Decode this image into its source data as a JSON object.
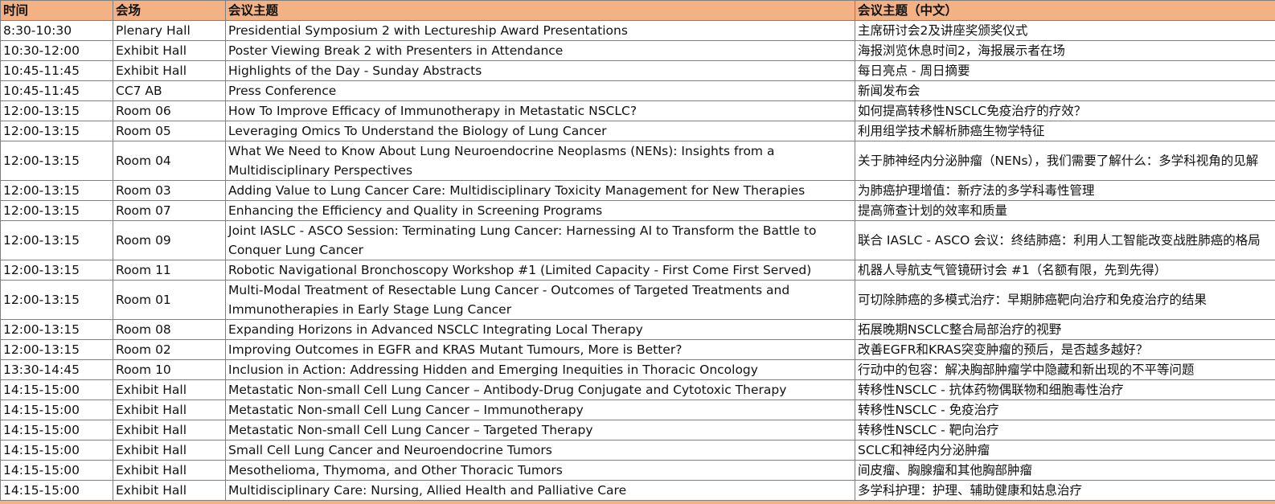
{
  "headers": {
    "time": "时间",
    "venue": "会场",
    "topic": "会议主题",
    "topic_cn": "会议主题（中文）"
  },
  "rows": [
    {
      "time": " 8:30-10:30",
      "venue": "Plenary Hall",
      "topic": "Presidential Symposium 2 with Lectureship Award Presentations",
      "topic_cn": "主席研讨会2及讲座奖颁奖仪式"
    },
    {
      "time": "10:30-12:00",
      "venue": "Exhibit Hall",
      "topic": "Poster Viewing Break 2 with Presenters in Attendance",
      "topic_cn": "海报浏览休息时间2，海报展示者在场"
    },
    {
      "time": "10:45-11:45",
      "venue": "Exhibit Hall",
      "topic": "Highlights of the Day - Sunday Abstracts",
      "topic_cn": "每日亮点 - 周日摘要"
    },
    {
      "time": "10:45-11:45",
      "venue": "CC7 AB",
      "topic": "Press Conference",
      "topic_cn": "新闻发布会"
    },
    {
      "time": "12:00-13:15",
      "venue": "Room 06",
      "topic": "How To Improve Efficacy of Immunotherapy in Metastatic NSCLC?",
      "topic_cn": "如何提高转移性NSCLC免疫治疗的疗效？"
    },
    {
      "time": "12:00-13:15",
      "venue": "Room 05",
      "topic": "Leveraging Omics To Understand the Biology of Lung Cancer",
      "topic_cn": "利用组学技术解析肺癌生物学特征"
    },
    {
      "time": "12:00-13:15",
      "venue": "Room 04",
      "topic": "What We Need to Know About Lung Neuroendocrine Neoplasms (NENs): Insights from a Multidisciplinary Perspectives",
      "topic_cn": "关于肺神经内分泌肿瘤（NENs），我们需要了解什么：多学科视角的见解",
      "tall": true
    },
    {
      "time": "12:00-13:15",
      "venue": "Room 03",
      "topic": "Adding Value to Lung Cancer Care: Multidisciplinary Toxicity Management for New Therapies",
      "topic_cn": "为肺癌护理增值：新疗法的多学科毒性管理"
    },
    {
      "time": "12:00-13:15",
      "venue": "Room 07",
      "topic": "Enhancing the Efficiency and Quality in Screening Programs",
      "topic_cn": "提高筛查计划的效率和质量"
    },
    {
      "time": "12:00-13:15",
      "venue": "Room 09",
      "topic": "Joint IASLC - ASCO Session: Terminating Lung Cancer: Harnessing AI to Transform the Battle to Conquer Lung Cancer",
      "topic_cn": "联合 IASLC - ASCO 会议：终结肺癌：利用人工智能改变战胜肺癌的格局",
      "tall": true
    },
    {
      "time": "12:00-13:15",
      "venue": "Room 11",
      "topic": "Robotic Navigational Bronchoscopy Workshop #1 (Limited Capacity - First Come First Served)",
      "topic_cn": "机器人导航支气管镜研讨会 #1（名额有限，先到先得）"
    },
    {
      "time": "12:00-13:15",
      "venue": "Room 01",
      "topic": "Multi-Modal Treatment of Resectable Lung Cancer - Outcomes of Targeted Treatments and Immunotherapies in Early Stage Lung Cancer",
      "topic_cn": "可切除肺癌的多模式治疗：早期肺癌靶向治疗和免疫治疗的结果",
      "tall": true
    },
    {
      "time": "12:00-13:15",
      "venue": "Room 08",
      "topic": "Expanding Horizons in Advanced NSCLC Integrating Local Therapy",
      "topic_cn": "拓展晚期NSCLC整合局部治疗的视野"
    },
    {
      "time": "12:00-13:15",
      "venue": "Room 02",
      "topic": "Improving Outcomes in EGFR and KRAS Mutant Tumours, More is Better?",
      "topic_cn": "改善EGFR和KRAS突变肿瘤的预后，是否越多越好？"
    },
    {
      "time": "13:30-14:45",
      "venue": "Room 10",
      "topic": "Inclusion in Action: Addressing Hidden and Emerging Inequities in Thoracic Oncology",
      "topic_cn": "行动中的包容：解决胸部肿瘤学中隐藏和新出现的不平等问题"
    },
    {
      "time": "14:15-15:00",
      "venue": "Exhibit Hall",
      "topic": "Metastatic Non-small Cell Lung Cancer – Antibody-Drug Conjugate and Cytotoxic Therapy",
      "topic_cn": "转移性NSCLC - 抗体药物偶联物和细胞毒性治疗"
    },
    {
      "time": "14:15-15:00",
      "venue": "Exhibit Hall",
      "topic": "Metastatic Non-small Cell Lung Cancer – Immunotherapy",
      "topic_cn": "转移性NSCLC - 免疫治疗"
    },
    {
      "time": "14:15-15:00",
      "venue": "Exhibit Hall",
      "topic": "Metastatic Non-small Cell Lung Cancer – Targeted Therapy",
      "topic_cn": "转移性NSCLC - 靶向治疗"
    },
    {
      "time": "14:15-15:00",
      "venue": "Exhibit Hall",
      "topic": "Small Cell Lung Cancer and Neuroendocrine Tumors",
      "topic_cn": "SCLC和神经内分泌肿瘤"
    },
    {
      "time": "14:15-15:00",
      "venue": "Exhibit Hall",
      "topic": "Mesothelioma, Thymoma, and Other Thoracic Tumors",
      "topic_cn": "间皮瘤、胸腺瘤和其他胸部肿瘤"
    },
    {
      "time": "14:15-15:00",
      "venue": "Exhibit Hall",
      "topic": "Multidisciplinary Care: Nursing, Allied Health and Palliative Care",
      "topic_cn": "多学科护理：护理、辅助健康和姑息治疗"
    }
  ],
  "colors": {
    "header_bg": "#f4b183",
    "grid": "#7f7f7f"
  }
}
